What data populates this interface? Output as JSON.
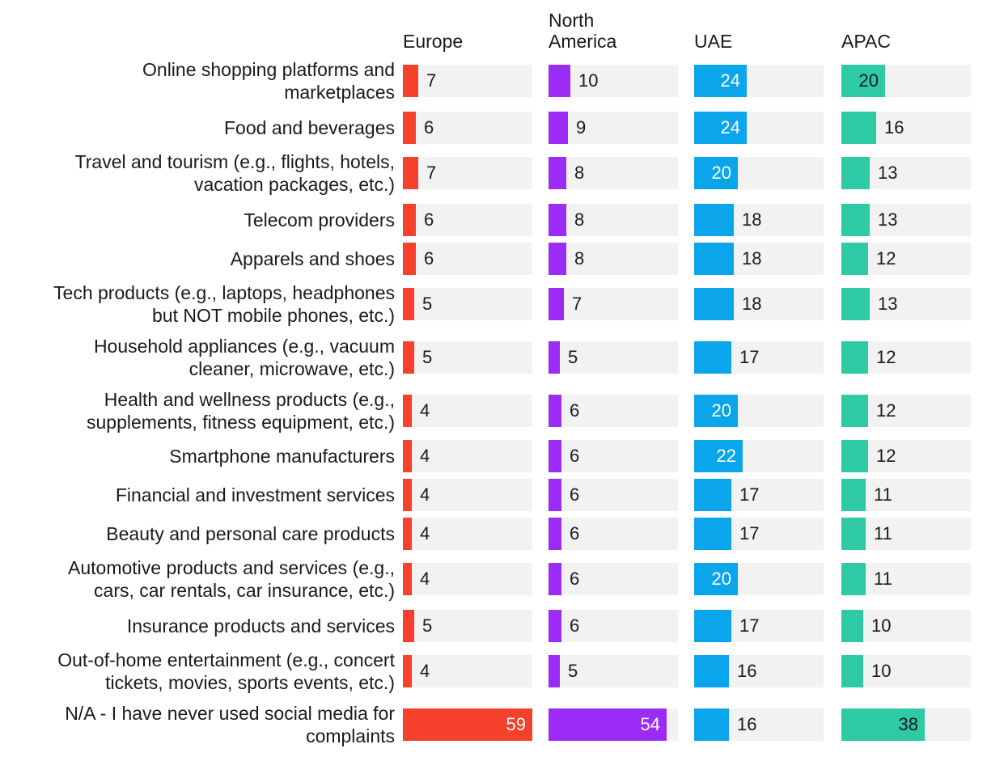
{
  "chart_data": {
    "type": "bar",
    "orientation": "horizontal",
    "layout": "small-multiples",
    "xlim": [
      0,
      59
    ],
    "columns": [
      "Europe",
      "North\nAmerica",
      "UAE",
      "APAC"
    ],
    "colors": [
      "#f5402c",
      "#9b2cf5",
      "#0ba5ec",
      "#2ec9a5"
    ],
    "categories": [
      "Online shopping platforms and marketplaces",
      "Food and beverages",
      "Travel and tourism (e.g., flights, hotels, vacation packages, etc.)",
      "Telecom providers",
      "Apparels and shoes",
      "Tech products (e.g., laptops, headphones but NOT mobile phones, etc.)",
      "Household appliances (e.g., vacuum cleaner, microwave, etc.)",
      "Health and wellness products (e.g., supplements, fitness equipment, etc.)",
      "Smartphone manufacturers",
      "Financial and investment services",
      "Beauty and personal care products",
      "Automotive products and services (e.g., cars, car rentals, car insurance, etc.)",
      "Insurance products and services",
      "Out-of-home entertainment (e.g., concert tickets, movies, sports events, etc.)",
      "N/A - I have never used social media for complaints"
    ],
    "label_lines": [
      [
        "Online shopping platforms and",
        "marketplaces"
      ],
      [
        "Food and beverages"
      ],
      [
        "Travel and tourism (e.g., flights, hotels,",
        "vacation packages, etc.)"
      ],
      [
        "Telecom providers"
      ],
      [
        "Apparels and shoes"
      ],
      [
        "Tech products (e.g., laptops, headphones",
        "but NOT mobile phones, etc.)"
      ],
      [
        "Household appliances (e.g., vacuum",
        "cleaner, microwave, etc.)"
      ],
      [
        "Health and wellness products (e.g.,",
        "supplements, fitness equipment, etc.)"
      ],
      [
        "Smartphone manufacturers"
      ],
      [
        "Financial and investment services"
      ],
      [
        "Beauty and personal care products"
      ],
      [
        "Automotive products and services (e.g.,",
        "cars, car rentals, car insurance, etc.)"
      ],
      [
        "Insurance products and services"
      ],
      [
        "Out-of-home entertainment (e.g., concert",
        "tickets, movies, sports events, etc.)"
      ],
      [
        "N/A - I have never used social media for",
        "complaints"
      ]
    ],
    "series": [
      {
        "name": "Europe",
        "values": [
          7,
          6,
          7,
          6,
          6,
          5,
          5,
          4,
          4,
          4,
          4,
          4,
          5,
          4,
          59
        ]
      },
      {
        "name": "North America",
        "values": [
          10,
          9,
          8,
          8,
          8,
          7,
          5,
          6,
          6,
          6,
          6,
          6,
          6,
          5,
          54
        ]
      },
      {
        "name": "UAE",
        "values": [
          24,
          24,
          20,
          18,
          18,
          18,
          17,
          20,
          22,
          17,
          17,
          20,
          17,
          16,
          16
        ]
      },
      {
        "name": "APAC",
        "values": [
          20,
          16,
          13,
          13,
          12,
          13,
          12,
          12,
          12,
          11,
          11,
          11,
          10,
          10,
          38
        ]
      }
    ]
  }
}
